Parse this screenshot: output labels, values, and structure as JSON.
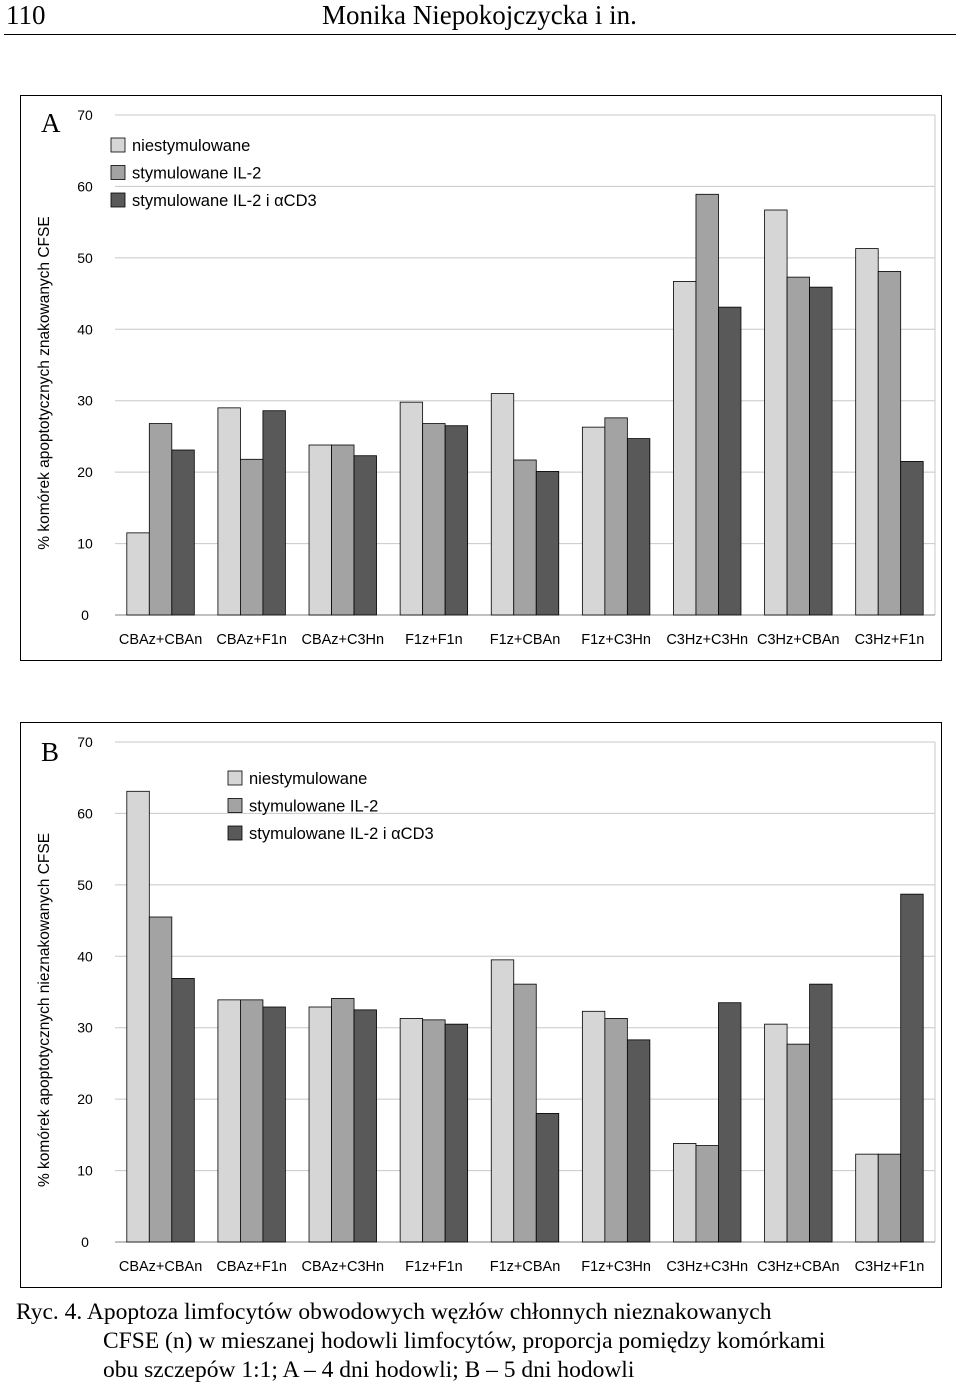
{
  "header": {
    "page_number": "110",
    "authors": "Monika Niepokojczycka i in."
  },
  "colors": {
    "niestymulowane": "#d6d6d6",
    "stymulowane_il2": "#a3a3a3",
    "stymulowane_il2_acd3": "#595959",
    "grid": "#c8c8c8"
  },
  "chart_data": [
    {
      "type": "bar",
      "panel_label": "A",
      "title": "",
      "xlabel": "",
      "ylabel": "% komórek apoptotycznych znakowanych CFSE",
      "ylim": [
        0,
        70
      ],
      "yticks": [
        "0",
        "10",
        "20",
        "30",
        "40",
        "50",
        "60",
        "70"
      ],
      "grid": true,
      "legend_position": "top-left",
      "categories": [
        "CBAz+CBAn",
        "CBAz+F1n",
        "CBAz+C3Hn",
        "F1z+F1n",
        "F1z+CBAn",
        "F1z+C3Hn",
        "C3Hz+C3Hn",
        "C3Hz+CBAn",
        "C3Hz+F1n"
      ],
      "series": [
        {
          "name": "niestymulowane",
          "values": [
            11.5,
            29,
            23.8,
            29.8,
            31,
            26.3,
            46.7,
            56.7,
            51.3
          ]
        },
        {
          "name": "stymulowane IL-2",
          "values": [
            26.8,
            21.8,
            23.8,
            26.8,
            21.7,
            27.6,
            58.9,
            47.3,
            48.1
          ]
        },
        {
          "name": "stymulowane IL-2 i αCD3",
          "values": [
            23.1,
            28.6,
            22.3,
            26.5,
            20.1,
            24.7,
            43.1,
            45.9,
            21.5
          ]
        }
      ]
    },
    {
      "type": "bar",
      "panel_label": "B",
      "title": "",
      "xlabel": "",
      "ylabel": "% komórek apoptotycznych nieznakowanych CFSE",
      "ylim": [
        0,
        70
      ],
      "yticks": [
        "0",
        "10",
        "20",
        "30",
        "40",
        "50",
        "60",
        "70"
      ],
      "grid": true,
      "legend_position": "top-center",
      "categories": [
        "CBAz+CBAn",
        "CBAz+F1n",
        "CBAz+C3Hn",
        "F1z+F1n",
        "F1z+CBAn",
        "F1z+C3Hn",
        "C3Hz+C3Hn",
        "C3Hz+CBAn",
        "C3Hz+F1n"
      ],
      "series": [
        {
          "name": "niestymulowane",
          "values": [
            63.1,
            33.9,
            32.9,
            31.3,
            39.5,
            32.3,
            13.8,
            30.5,
            12.3
          ]
        },
        {
          "name": "stymulowane IL-2",
          "values": [
            45.5,
            33.9,
            34.1,
            31.1,
            36.1,
            31.3,
            13.5,
            27.7,
            12.3
          ]
        },
        {
          "name": "stymulowane IL-2 i αCD3",
          "values": [
            36.9,
            32.9,
            32.5,
            30.5,
            18.0,
            28.3,
            33.5,
            36.1,
            48.7
          ]
        }
      ]
    }
  ],
  "caption": {
    "line1": "Ryc. 4. Apoptoza limfocytów obwodowych węzłów chłonnych nieznakowanych",
    "line2": "CFSE (n) w mieszanej hodowli limfocytów, proporcja pomiędzy komórkami",
    "line3": "obu szczepów 1:1; A – 4 dni hodowli; B – 5 dni hodowli"
  }
}
